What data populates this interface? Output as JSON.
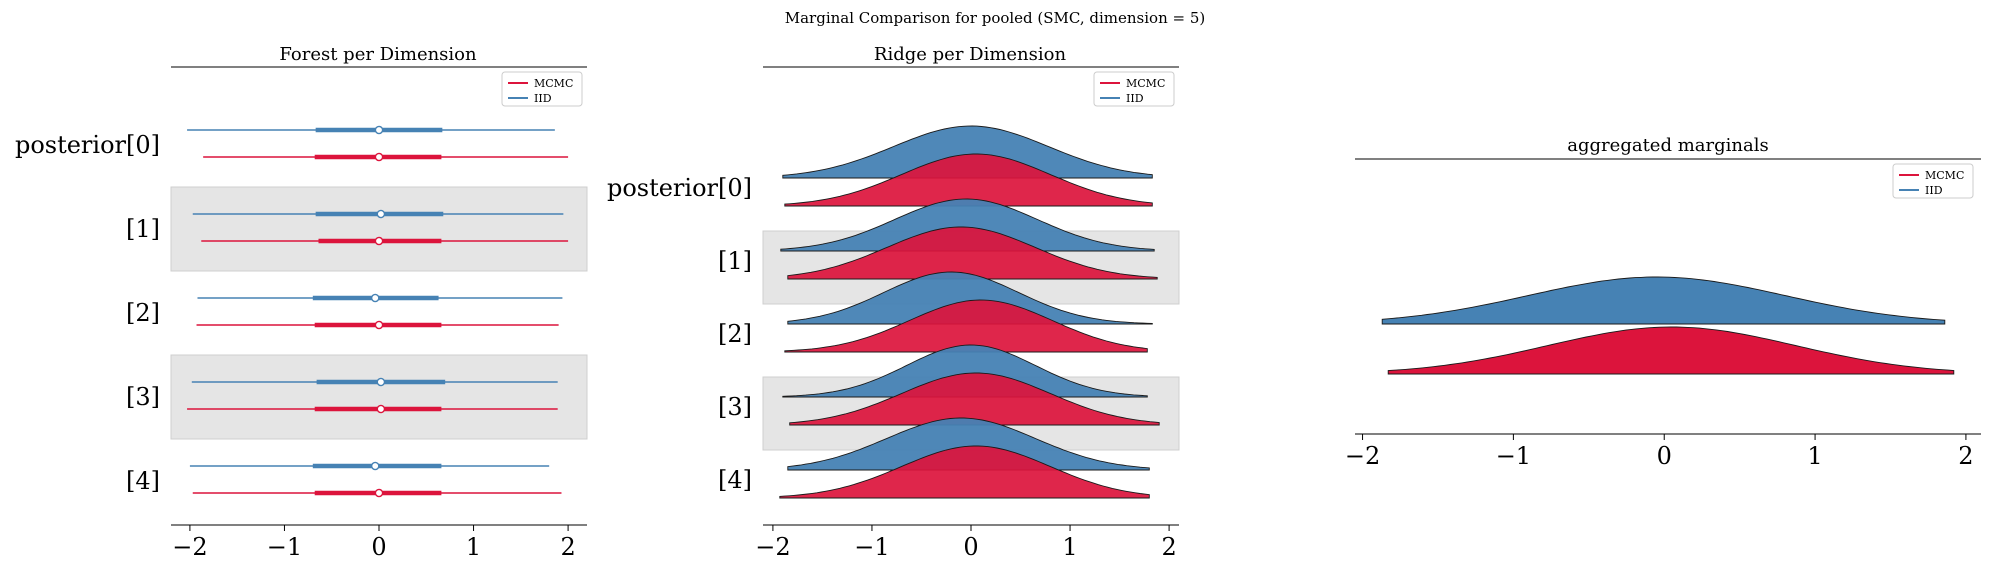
{
  "figure": {
    "suptitle": "Marginal Comparison for pooled (SMC, dimension = 5)",
    "colors": {
      "mcmc": "#dc143c",
      "iid": "#4682b4",
      "band": "#e5e5e5"
    }
  },
  "legend": {
    "entries": [
      "MCMC",
      "IID"
    ]
  },
  "chart_data": [
    {
      "type": "forest",
      "title": "Forest per Dimension",
      "xlim": [
        -2.2,
        2.2
      ],
      "xticks": [
        -2,
        -1,
        0,
        1,
        2
      ],
      "xtick_labels": [
        "−2",
        "−1",
        "0",
        "1",
        "2"
      ],
      "row_labels": [
        "posterior[0]",
        "[1]",
        "[2]",
        "[3]",
        "[4]"
      ],
      "shaded_rows": [
        1,
        3
      ],
      "legend_entries": [
        "MCMC",
        "IID"
      ],
      "series": [
        {
          "name": "IID",
          "color": "#4682b4",
          "rows": [
            {
              "low": -2.03,
              "q1": -0.67,
              "median": 0.0,
              "q3": 0.67,
              "high": 1.86
            },
            {
              "low": -1.97,
              "q1": -0.67,
              "median": 0.02,
              "q3": 0.68,
              "high": 1.95
            },
            {
              "low": -1.92,
              "q1": -0.7,
              "median": -0.04,
              "q3": 0.63,
              "high": 1.94
            },
            {
              "low": -1.98,
              "q1": -0.66,
              "median": 0.02,
              "q3": 0.7,
              "high": 1.89
            },
            {
              "low": -2.0,
              "q1": -0.7,
              "median": -0.04,
              "q3": 0.66,
              "high": 1.8
            }
          ]
        },
        {
          "name": "MCMC",
          "color": "#dc143c",
          "rows": [
            {
              "low": -1.86,
              "q1": -0.68,
              "median": 0.0,
              "q3": 0.66,
              "high": 2.0
            },
            {
              "low": -1.88,
              "q1": -0.64,
              "median": 0.0,
              "q3": 0.66,
              "high": 2.0
            },
            {
              "low": -1.93,
              "q1": -0.68,
              "median": 0.0,
              "q3": 0.66,
              "high": 1.9
            },
            {
              "low": -2.03,
              "q1": -0.68,
              "median": 0.02,
              "q3": 0.66,
              "high": 1.89
            },
            {
              "low": -1.97,
              "q1": -0.68,
              "median": 0.0,
              "q3": 0.66,
              "high": 1.93
            }
          ]
        }
      ]
    },
    {
      "type": "ridge",
      "title": "Ridge per Dimension",
      "xlim": [
        -2.1,
        2.1
      ],
      "xticks": [
        -2,
        -1,
        0,
        1,
        2
      ],
      "xtick_labels": [
        "−2",
        "−1",
        "0",
        "1",
        "2"
      ],
      "row_labels": [
        "posterior[0]",
        "[1]",
        "[2]",
        "[3]",
        "[4]"
      ],
      "shaded_rows": [
        1,
        3
      ],
      "legend_entries": [
        "MCMC",
        "IID"
      ],
      "series": [
        {
          "name": "IID",
          "color": "#4682b4",
          "rows": [
            {
              "min": -1.9,
              "max": 1.83,
              "mode": 0.0,
              "sd": 0.78,
              "peak": 1.0
            },
            {
              "min": -1.92,
              "max": 1.85,
              "mode": -0.05,
              "sd": 0.72,
              "peak": 1.0
            },
            {
              "min": -1.85,
              "max": 1.83,
              "mode": -0.2,
              "sd": 0.68,
              "peak": 1.0
            },
            {
              "min": -1.9,
              "max": 1.78,
              "mode": 0.0,
              "sd": 0.65,
              "peak": 1.0
            },
            {
              "min": -1.85,
              "max": 1.8,
              "mode": -0.1,
              "sd": 0.75,
              "peak": 1.0
            }
          ]
        },
        {
          "name": "MCMC",
          "color": "#dc143c",
          "rows": [
            {
              "min": -1.88,
              "max": 1.83,
              "mode": 0.05,
              "sd": 0.75,
              "peak": 1.0
            },
            {
              "min": -1.85,
              "max": 1.88,
              "mode": -0.1,
              "sd": 0.75,
              "peak": 1.0
            },
            {
              "min": -1.88,
              "max": 1.78,
              "mode": 0.1,
              "sd": 0.72,
              "peak": 1.0
            },
            {
              "min": -1.83,
              "max": 1.9,
              "mode": 0.05,
              "sd": 0.75,
              "peak": 1.0
            },
            {
              "min": -1.93,
              "max": 1.8,
              "mode": 0.05,
              "sd": 0.75,
              "peak": 1.0
            }
          ]
        }
      ]
    },
    {
      "type": "ridge",
      "title": "aggregated marginals",
      "xlim": [
        -2.05,
        2.1
      ],
      "xticks": [
        -2,
        -1,
        0,
        1,
        2
      ],
      "xtick_labels": [
        "−2",
        "−1",
        "0",
        "1",
        "2"
      ],
      "legend_entries": [
        "MCMC",
        "IID"
      ],
      "series": [
        {
          "name": "IID",
          "color": "#4682b4",
          "min": -1.87,
          "max": 1.86,
          "mode": -0.05,
          "sd": 0.85,
          "peak": 1.0
        },
        {
          "name": "MCMC",
          "color": "#dc143c",
          "min": -1.83,
          "max": 1.92,
          "mode": 0.05,
          "sd": 0.82,
          "peak": 1.0
        }
      ]
    }
  ]
}
